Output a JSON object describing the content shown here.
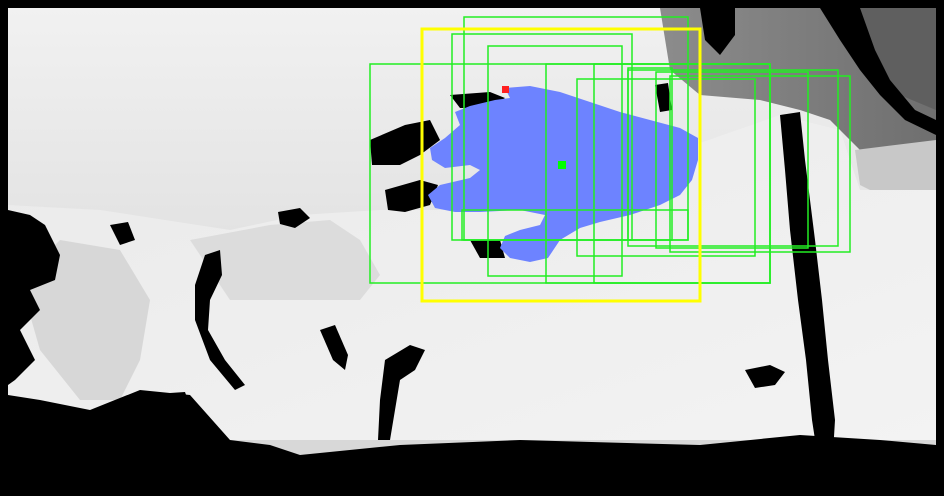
{
  "image": {
    "kind": "depth-map hand detection visualization",
    "colors": {
      "background_depth_light": "#e6e6e6",
      "background_depth_mid": "#cfcfcf",
      "background_depth_dark": "#7f7f7f",
      "void_black": "#000000",
      "hand_mask": "#6d83ff",
      "candidate_box": "#22ee22",
      "selected_box": "#ffff00",
      "center_point": "#00ff00",
      "tip_point": "#ff2020"
    },
    "candidate_box_count": 12,
    "selected_box_count": 1,
    "markers": [
      "hand-center-point",
      "fingertip-point"
    ]
  }
}
